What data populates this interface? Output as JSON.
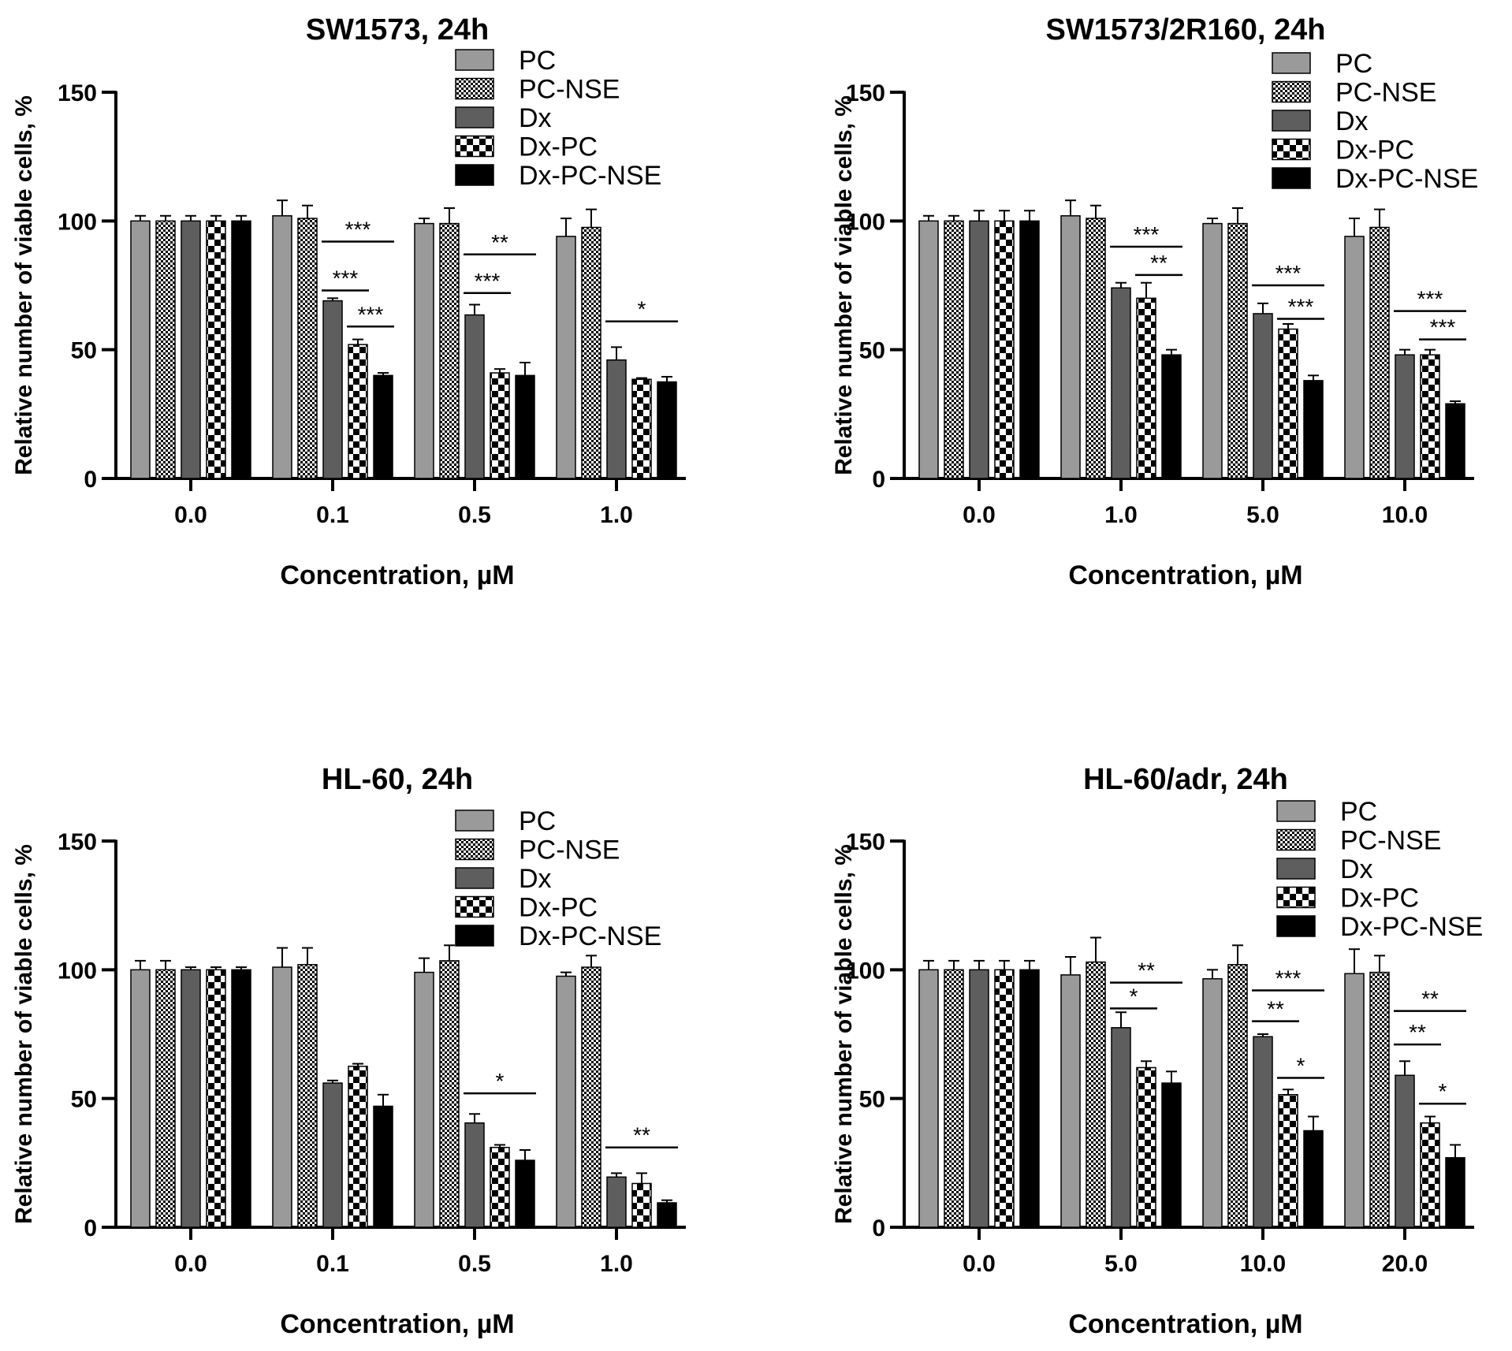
{
  "figure": {
    "legend_labels": [
      "PC",
      "PC-NSE",
      "Dx",
      "Dx-PC",
      "Dx-PC-NSE"
    ],
    "series_fills": [
      "gray",
      "dots",
      "darkgray",
      "checker",
      "black"
    ],
    "colors": {
      "PC": "#9a9a9a",
      "Dx": "#5e5e5e",
      "Dx-PC-NSE": "#000000",
      "axis": "#000000",
      "background": "#ffffff"
    }
  },
  "chart_data": [
    {
      "type": "bar",
      "title": "SW1573, 24h",
      "xlabel": "Concentration, µM",
      "ylabel": "Relative number of viable cells,  %",
      "ylim": [
        0,
        150
      ],
      "yticks": [
        "0",
        "50",
        "100",
        "150"
      ],
      "categories": [
        "0.0",
        "0.1",
        "0.5",
        "1.0"
      ],
      "legend_position": "top-right",
      "series": [
        {
          "name": "PC",
          "values": [
            100,
            102,
            99,
            94
          ],
          "errors": [
            2,
            6,
            2,
            7
          ]
        },
        {
          "name": "PC-NSE",
          "values": [
            100,
            101,
            99,
            97.5
          ],
          "errors": [
            2,
            5,
            6,
            7
          ]
        },
        {
          "name": "Dx",
          "values": [
            100,
            69,
            63.5,
            46
          ],
          "errors": [
            2,
            1,
            4,
            5
          ]
        },
        {
          "name": "Dx-PC",
          "values": [
            100,
            52,
            41,
            38.5
          ],
          "errors": [
            2,
            2,
            1.5,
            0.5
          ]
        },
        {
          "name": "Dx-PC-NSE",
          "values": [
            100,
            40,
            40,
            37.5
          ],
          "errors": [
            2,
            1,
            5,
            2
          ]
        }
      ],
      "significance": [
        {
          "group": 1,
          "from": 2,
          "to": 4,
          "label": "***",
          "value": 92
        },
        {
          "group": 1,
          "from": 2,
          "to": 3,
          "label": "***",
          "value": 73
        },
        {
          "group": 1,
          "from": 3,
          "to": 4,
          "label": "***",
          "value": 59
        },
        {
          "group": 2,
          "from": 2,
          "to": 4,
          "label": "**",
          "value": 87
        },
        {
          "group": 2,
          "from": 2,
          "to": 3,
          "label": "***",
          "value": 72
        },
        {
          "group": 3,
          "from": 2,
          "to": 4,
          "label": "*",
          "value": 61
        }
      ]
    },
    {
      "type": "bar",
      "title": "SW1573/2R160, 24h",
      "xlabel": "Concentration, µM",
      "ylabel": "Relative number of viable cells,  %",
      "ylim": [
        0,
        150
      ],
      "yticks": [
        "0",
        "50",
        "100",
        "150"
      ],
      "categories": [
        "0.0",
        "1.0",
        "5.0",
        "10.0"
      ],
      "legend_position": "top-right",
      "series": [
        {
          "name": "PC",
          "values": [
            100,
            102,
            99,
            94
          ],
          "errors": [
            2,
            6,
            2,
            7
          ]
        },
        {
          "name": "PC-NSE",
          "values": [
            100,
            101,
            99,
            97.5
          ],
          "errors": [
            2,
            5,
            6,
            7
          ]
        },
        {
          "name": "Dx",
          "values": [
            100,
            74,
            64,
            48
          ],
          "errors": [
            4,
            2,
            4,
            2
          ]
        },
        {
          "name": "Dx-PC",
          "values": [
            100,
            70,
            58,
            48
          ],
          "errors": [
            4,
            6,
            2,
            2
          ]
        },
        {
          "name": "Dx-PC-NSE",
          "values": [
            100,
            48,
            38,
            29
          ],
          "errors": [
            4,
            2,
            2,
            1
          ]
        }
      ],
      "significance": [
        {
          "group": 1,
          "from": 2,
          "to": 4,
          "label": "***",
          "value": 90
        },
        {
          "group": 1,
          "from": 3,
          "to": 4,
          "label": "**",
          "value": 79
        },
        {
          "group": 2,
          "from": 2,
          "to": 4,
          "label": "***",
          "value": 75
        },
        {
          "group": 2,
          "from": 3,
          "to": 4,
          "label": "***",
          "value": 62
        },
        {
          "group": 3,
          "from": 2,
          "to": 4,
          "label": "***",
          "value": 65
        },
        {
          "group": 3,
          "from": 3,
          "to": 4,
          "label": "***",
          "value": 54
        }
      ]
    },
    {
      "type": "bar",
      "title": "HL-60, 24h",
      "xlabel": "Concentration, µM",
      "ylabel": "Relative number of viable cells,  %",
      "ylim": [
        0,
        150
      ],
      "yticks": [
        "0",
        "50",
        "100",
        "150"
      ],
      "categories": [
        "0.0",
        "0.1",
        "0.5",
        "1.0"
      ],
      "legend_position": "top-right",
      "series": [
        {
          "name": "PC",
          "values": [
            100,
            101,
            99,
            97.5
          ],
          "errors": [
            3.5,
            7.5,
            5.5,
            1.5
          ]
        },
        {
          "name": "PC-NSE",
          "values": [
            100,
            102,
            103.5,
            101
          ],
          "errors": [
            3.5,
            6.5,
            6,
            4.5
          ]
        },
        {
          "name": "Dx",
          "values": [
            100,
            56,
            40.5,
            19.5
          ],
          "errors": [
            1,
            1,
            3.5,
            1.5
          ]
        },
        {
          "name": "Dx-PC",
          "values": [
            100,
            62.5,
            31,
            17
          ],
          "errors": [
            1,
            1,
            1,
            4
          ]
        },
        {
          "name": "Dx-PC-NSE",
          "values": [
            100,
            47,
            26,
            9.5
          ],
          "errors": [
            1,
            4.5,
            4,
            1
          ]
        }
      ],
      "significance": [
        {
          "group": 2,
          "from": 2,
          "to": 4,
          "label": "*",
          "value": 52
        },
        {
          "group": 3,
          "from": 2,
          "to": 4,
          "label": "**",
          "value": 31
        }
      ]
    },
    {
      "type": "bar",
      "title": "HL-60/adr, 24h",
      "xlabel": "Concentration, µM",
      "ylabel": "Relative number of viable cells,  %",
      "ylim": [
        0,
        150
      ],
      "yticks": [
        "0",
        "50",
        "100",
        "150"
      ],
      "categories": [
        "0.0",
        "5.0",
        "10.0",
        "20.0"
      ],
      "legend_position": "top-right",
      "series": [
        {
          "name": "PC",
          "values": [
            100,
            98,
            96.5,
            98.5
          ],
          "errors": [
            3.5,
            7,
            3.5,
            9.5
          ]
        },
        {
          "name": "PC-NSE",
          "values": [
            100,
            103,
            102,
            99
          ],
          "errors": [
            3.5,
            9.5,
            7.5,
            6.5
          ]
        },
        {
          "name": "Dx",
          "values": [
            100,
            77.5,
            74,
            59
          ],
          "errors": [
            3.5,
            6,
            1,
            5.5
          ]
        },
        {
          "name": "Dx-PC",
          "values": [
            100,
            62,
            51.5,
            40.5
          ],
          "errors": [
            3.5,
            2.5,
            2,
            2.5
          ]
        },
        {
          "name": "Dx-PC-NSE",
          "values": [
            100,
            56,
            37.5,
            27
          ],
          "errors": [
            3.5,
            4.5,
            5.5,
            5
          ]
        }
      ],
      "significance": [
        {
          "group": 1,
          "from": 2,
          "to": 4,
          "label": "**",
          "value": 95
        },
        {
          "group": 1,
          "from": 2,
          "to": 3,
          "label": "*",
          "value": 85
        },
        {
          "group": 2,
          "from": 2,
          "to": 4,
          "label": "***",
          "value": 92
        },
        {
          "group": 2,
          "from": 2,
          "to": 3,
          "label": "**",
          "value": 80
        },
        {
          "group": 2,
          "from": 3,
          "to": 4,
          "label": "*",
          "value": 58
        },
        {
          "group": 3,
          "from": 2,
          "to": 4,
          "label": "**",
          "value": 84
        },
        {
          "group": 3,
          "from": 2,
          "to": 3,
          "label": "**",
          "value": 71
        },
        {
          "group": 3,
          "from": 3,
          "to": 4,
          "label": "*",
          "value": 48
        }
      ]
    }
  ]
}
